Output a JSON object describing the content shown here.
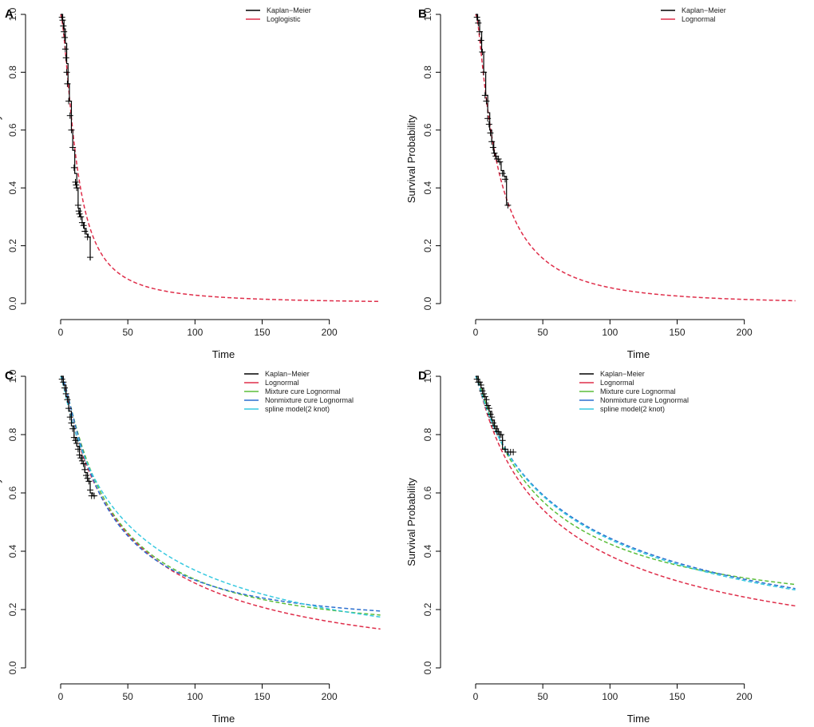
{
  "chart_data": [
    {
      "panel": "A",
      "type": "line",
      "xlabel": "Time",
      "ylabel": "Survival Probability",
      "xlim": [
        0,
        240
      ],
      "ylim": [
        0,
        1
      ],
      "xticks": [
        0,
        50,
        100,
        150,
        200
      ],
      "yticks": [
        0.0,
        0.2,
        0.4,
        0.6,
        0.8,
        1.0
      ],
      "ytick_labels": [
        "0.0",
        "0.2",
        "0.4",
        "0.6",
        "0.8",
        "1.0"
      ],
      "legend": [
        "Kaplan−Meier",
        "Loglogistic"
      ],
      "km": {
        "name": "Kaplan−Meier",
        "color": "#000000",
        "x": [
          0,
          1.5,
          2.5,
          3.5,
          4.5,
          5.5,
          6.5,
          8,
          9,
          10.5,
          12,
          13,
          14.5,
          16,
          17.5,
          19,
          20.5,
          22
        ],
        "y": [
          1.0,
          0.98,
          0.95,
          0.9,
          0.83,
          0.76,
          0.7,
          0.6,
          0.53,
          0.45,
          0.4,
          0.33,
          0.3,
          0.28,
          0.26,
          0.24,
          0.23,
          0.15
        ],
        "censor_x": [
          1,
          1.5,
          2,
          2.5,
          3,
          3.5,
          4,
          4.5,
          5,
          6,
          7,
          8,
          9,
          10,
          11,
          11.5,
          12,
          13,
          13.5,
          14,
          15,
          16,
          17,
          18,
          20,
          22
        ],
        "censor_y": [
          0.99,
          0.98,
          0.96,
          0.94,
          0.92,
          0.88,
          0.85,
          0.8,
          0.76,
          0.7,
          0.65,
          0.6,
          0.54,
          0.47,
          0.42,
          0.41,
          0.4,
          0.34,
          0.32,
          0.31,
          0.3,
          0.28,
          0.27,
          0.25,
          0.23,
          0.16
        ]
      },
      "series": [
        {
          "name": "Loglogistic",
          "color": "#DF2E4A",
          "model": "loglogistic",
          "params": {
            "alpha": 11.5,
            "beta": 1.62
          }
        }
      ]
    },
    {
      "panel": "B",
      "type": "line",
      "xlabel": "Time",
      "ylabel": "Survival Probability",
      "xlim": [
        0,
        240
      ],
      "ylim": [
        0,
        1
      ],
      "xticks": [
        0,
        50,
        100,
        150,
        200
      ],
      "yticks": [
        0.0,
        0.2,
        0.4,
        0.6,
        0.8,
        1.0
      ],
      "ytick_labels": [
        "0.0",
        "0.2",
        "0.4",
        "0.6",
        "0.8",
        "1.0"
      ],
      "legend": [
        "Kaplan−Meier",
        "Lognormal"
      ],
      "km": {
        "name": "Kaplan−Meier",
        "color": "#000000",
        "x": [
          0,
          1.5,
          3,
          4.5,
          6,
          7.5,
          9,
          10.5,
          12,
          13.5,
          15,
          17,
          19,
          21,
          23,
          24
        ],
        "y": [
          1.0,
          0.98,
          0.94,
          0.87,
          0.8,
          0.72,
          0.66,
          0.6,
          0.56,
          0.52,
          0.5,
          0.49,
          0.46,
          0.44,
          0.34,
          0.34
        ],
        "censor_x": [
          1,
          2,
          3,
          4,
          5,
          6,
          7,
          8,
          9,
          10,
          11,
          12,
          13,
          14,
          15,
          16,
          17,
          18,
          20,
          22,
          24
        ],
        "censor_y": [
          0.99,
          0.97,
          0.94,
          0.91,
          0.87,
          0.8,
          0.72,
          0.7,
          0.64,
          0.62,
          0.59,
          0.56,
          0.54,
          0.52,
          0.51,
          0.5,
          0.5,
          0.49,
          0.45,
          0.43,
          0.34
        ]
      },
      "series": [
        {
          "name": "Lognormal",
          "color": "#DF2E4A",
          "model": "lognormal",
          "params": {
            "mu": 2.72,
            "sigma": 1.18
          }
        }
      ]
    },
    {
      "panel": "C",
      "type": "line",
      "xlabel": "Time",
      "ylabel": "Survival Probability",
      "xlim": [
        0,
        240
      ],
      "ylim": [
        0,
        1
      ],
      "xticks": [
        0,
        50,
        100,
        150,
        200
      ],
      "yticks": [
        0.0,
        0.2,
        0.4,
        0.6,
        0.8,
        1.0
      ],
      "ytick_labels": [
        "0.0",
        "0.2",
        "0.4",
        "0.6",
        "0.8",
        "1.0"
      ],
      "legend": [
        "Kaplan−Meier",
        "Lognormal",
        "Mixture cure Lognormal",
        "Nonmixture cure Lognormal",
        "spline model(2 knot)"
      ],
      "km": {
        "name": "Kaplan−Meier",
        "color": "#000000",
        "x": [
          0,
          2,
          4,
          6,
          8,
          10,
          12,
          14,
          16,
          18,
          20,
          22,
          24,
          26
        ],
        "y": [
          1.0,
          0.97,
          0.93,
          0.88,
          0.83,
          0.79,
          0.76,
          0.73,
          0.7,
          0.67,
          0.64,
          0.6,
          0.59,
          0.59
        ],
        "censor_x": [
          1,
          2,
          3,
          4,
          5,
          6,
          7,
          8,
          9,
          10,
          11,
          12,
          13,
          14,
          15,
          16,
          17,
          18,
          19,
          20,
          21,
          22,
          23,
          25
        ],
        "censor_y": [
          0.99,
          0.98,
          0.96,
          0.94,
          0.92,
          0.89,
          0.86,
          0.84,
          0.82,
          0.79,
          0.78,
          0.77,
          0.75,
          0.73,
          0.72,
          0.71,
          0.7,
          0.68,
          0.66,
          0.65,
          0.64,
          0.61,
          0.59,
          0.59
        ]
      },
      "series": [
        {
          "name": "Lognormal",
          "color": "#DF2E4A",
          "model": "lognormal",
          "params": {
            "mu": 3.75,
            "sigma": 1.55
          }
        },
        {
          "name": "Mixture cure Lognormal",
          "color": "#5BBE3A",
          "model": "mixture",
          "params": {
            "mu": 3.55,
            "sigma": 1.3,
            "cure": 0.12
          }
        },
        {
          "name": "Nonmixture cure Lognormal",
          "color": "#2C6FCF",
          "model": "mixture",
          "params": {
            "mu": 3.45,
            "sigma": 1.25,
            "cure": 0.15
          }
        },
        {
          "name": "spline model(2 knot)",
          "color": "#37C9E0",
          "model": "lognormal",
          "params": {
            "mu": 3.88,
            "sigma": 1.7
          }
        }
      ]
    },
    {
      "panel": "D",
      "type": "line",
      "xlabel": "Time",
      "ylabel": "Survival Probability",
      "xlim": [
        0,
        240
      ],
      "ylim": [
        0,
        1
      ],
      "xticks": [
        0,
        50,
        100,
        150,
        200
      ],
      "yticks": [
        0.0,
        0.2,
        0.4,
        0.6,
        0.8,
        1.0
      ],
      "ytick_labels": [
        "0.0",
        "0.2",
        "0.4",
        "0.6",
        "0.8",
        "1.0"
      ],
      "legend": [
        "Kaplan−Meier",
        "Lognormal",
        "Mixture cure Lognormal",
        "Nonmixture cure Lognormal",
        "spline model(2 knot)"
      ],
      "km": {
        "name": "Kaplan−Meier",
        "color": "#000000",
        "x": [
          0,
          2,
          4,
          6,
          8,
          10,
          12,
          14,
          16,
          18,
          20,
          22,
          24,
          28
        ],
        "y": [
          1.0,
          0.98,
          0.96,
          0.93,
          0.9,
          0.88,
          0.85,
          0.83,
          0.81,
          0.8,
          0.75,
          0.74,
          0.74,
          0.74
        ],
        "censor_x": [
          1,
          2,
          3,
          4,
          5,
          6,
          7,
          8,
          9,
          10,
          11,
          12,
          13,
          14,
          15,
          16,
          17,
          18,
          19,
          20,
          22,
          24,
          26,
          28
        ],
        "censor_y": [
          0.99,
          0.98,
          0.98,
          0.97,
          0.95,
          0.94,
          0.93,
          0.92,
          0.9,
          0.89,
          0.87,
          0.86,
          0.84,
          0.83,
          0.82,
          0.81,
          0.81,
          0.8,
          0.8,
          0.78,
          0.75,
          0.74,
          0.74,
          0.74
        ]
      },
      "series": [
        {
          "name": "Lognormal",
          "color": "#DF2E4A",
          "model": "lognormal",
          "params": {
            "mu": 4.1,
            "sigma": 1.72
          }
        },
        {
          "name": "Mixture cure Lognormal",
          "color": "#5BBE3A",
          "model": "mixture",
          "params": {
            "mu": 3.85,
            "sigma": 1.5,
            "cure": 0.17
          }
        },
        {
          "name": "Nonmixture cure Lognormal",
          "color": "#2C6FCF",
          "model": "lognormal",
          "params": {
            "mu": 4.35,
            "sigma": 1.85
          }
        },
        {
          "name": "spline model(2 knot)",
          "color": "#37C9E0",
          "model": "lognormal",
          "params": {
            "mu": 4.33,
            "sigma": 1.84
          }
        }
      ]
    }
  ]
}
